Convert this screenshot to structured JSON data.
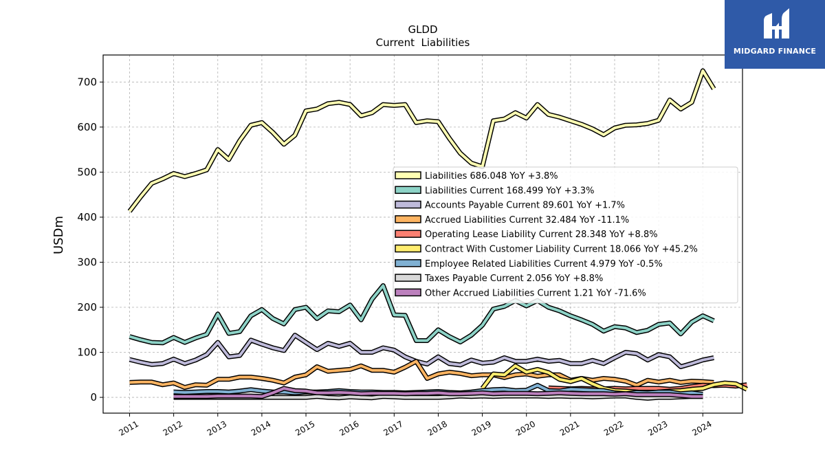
{
  "logo": {
    "text": "MIDGARD FINANCE"
  },
  "chart_data": {
    "type": "line",
    "title": "GLDD",
    "subtitle": "Current  Liabilities",
    "ylabel": "USDm",
    "xlabel": "",
    "ylim": [
      -35,
      760
    ],
    "xlim": [
      2010.4,
      2024.9
    ],
    "yticks": [
      0,
      100,
      200,
      300,
      400,
      500,
      600,
      700
    ],
    "xticks": [
      "2011",
      "2012",
      "2013",
      "2014",
      "2015",
      "2016",
      "2017",
      "2018",
      "2019",
      "2020",
      "2021",
      "2022",
      "2023",
      "2024"
    ],
    "grid": true,
    "legend_position": "center-right",
    "series": [
      {
        "name": "Liabilities",
        "legend": "Liabilities  686.048 YoY +3.8%",
        "color": "#ffffb3",
        "x0": 2011.0,
        "values": [
          413,
          445,
          475,
          485,
          497,
          490,
          497,
          505,
          550,
          528,
          570,
          604,
          610,
          588,
          562,
          582,
          636,
          640,
          652,
          655,
          650,
          625,
          632,
          650,
          648,
          650,
          610,
          614,
          612,
          575,
          542,
          520,
          512,
          614,
          618,
          632,
          620,
          650,
          628,
          622,
          614,
          606,
          596,
          583,
          598,
          604,
          605,
          608,
          615,
          660,
          640,
          655,
          725,
          685
        ]
      },
      {
        "name": "Liabilities Current",
        "legend": "Liabilities Current  168.499 YoY +3.3%",
        "color": "#8dd3c7",
        "x0": 2011.0,
        "values": [
          135,
          128,
          122,
          121,
          133,
          122,
          132,
          140,
          185,
          142,
          146,
          181,
          195,
          175,
          163,
          195,
          200,
          175,
          192,
          190,
          205,
          172,
          218,
          248,
          183,
          182,
          126,
          126,
          150,
          135,
          123,
          138,
          160,
          196,
          202,
          215,
          203,
          215,
          200,
          192,
          181,
          172,
          162,
          147,
          157,
          154,
          144,
          149,
          162,
          165,
          141,
          167,
          181,
          170
        ]
      },
      {
        "name": "Accounts Payable Current",
        "legend": "Accounts Payable Current  89.601 YoY +1.7%",
        "color": "#bebada",
        "x0": 2011.0,
        "values": [
          84,
          78,
          73,
          75,
          85,
          75,
          83,
          95,
          122,
          90,
          93,
          127,
          118,
          110,
          104,
          138,
          122,
          106,
          120,
          113,
          120,
          100,
          100,
          110,
          105,
          90,
          80,
          74,
          90,
          75,
          72,
          83,
          76,
          78,
          88,
          80,
          80,
          85,
          80,
          82,
          75,
          75,
          82,
          75,
          88,
          100,
          97,
          83,
          95,
          90,
          68,
          75,
          83,
          88
        ]
      },
      {
        "name": "Accrued Liabilities Current",
        "legend": "Accrued Liabilities Current  32.484 YoY -11.1%",
        "color": "#fdb462",
        "x0": 2011.0,
        "values": [
          33,
          34,
          34,
          28,
          32,
          22,
          28,
          27,
          40,
          40,
          45,
          45,
          42,
          38,
          32,
          45,
          50,
          68,
          58,
          60,
          62,
          70,
          60,
          60,
          56,
          67,
          80,
          42,
          52,
          56,
          53,
          48,
          50,
          50,
          44,
          50,
          52,
          47,
          50,
          50,
          38,
          42,
          38,
          42,
          40,
          36,
          27,
          38,
          34,
          38,
          33,
          36,
          35,
          33
        ]
      },
      {
        "name": "Operating Lease Liability Current",
        "legend": "Operating Lease Liability Current  28.348 YoY +8.8%",
        "color": "#fb8072",
        "x0": 2019.0,
        "values": [
          null,
          null,
          null,
          null,
          null,
          null,
          21,
          20,
          19,
          20,
          19,
          19,
          20,
          19,
          20,
          20,
          20,
          18,
          20,
          24,
          27,
          26,
          27,
          25,
          28
        ]
      },
      {
        "name": "Contract With Customer Liability Current",
        "legend": "Contract With Customer Liability Current  18.066 YoY +45.2%",
        "color": "#ffed6f",
        "x0": 2019.0,
        "values": [
          20,
          52,
          50,
          70,
          56,
          62,
          55,
          40,
          35,
          42,
          30,
          20,
          15,
          14,
          12,
          10,
          12,
          14,
          15,
          18,
          20,
          28,
          32,
          30,
          18
        ]
      },
      {
        "name": "Employee Related Liabilities Current",
        "legend": "Employee Related Liabilities Current  4.979 YoY -0.5%",
        "color": "#80b1d3",
        "x0": 2012.0,
        "values": [
          12,
          11,
          12,
          13,
          13,
          12,
          14,
          17,
          14,
          12,
          12,
          10,
          12,
          12,
          13,
          15,
          13,
          12,
          12,
          11,
          11,
          10,
          11,
          12,
          13,
          11,
          10,
          12,
          15,
          17,
          18,
          15,
          16,
          27,
          15,
          14,
          18,
          17,
          16,
          15,
          10,
          8,
          11,
          10,
          12,
          12,
          8,
          10,
          7
        ]
      },
      {
        "name": "Taxes Payable Current",
        "legend": "Taxes Payable Current  2.056 YoY +8.8%",
        "color": "#d9d9d9",
        "x0": 2012.0,
        "values": [
          0,
          0,
          0,
          0,
          0,
          0,
          0,
          0,
          0,
          0,
          0,
          0,
          0,
          2,
          0,
          -1,
          1,
          0,
          -1,
          2,
          1,
          0,
          0,
          0,
          0,
          1,
          3,
          2,
          3,
          2,
          3,
          3,
          3,
          3,
          2,
          3,
          2,
          2,
          1,
          2,
          3,
          3,
          0,
          -2,
          0,
          0,
          1,
          2,
          2
        ]
      },
      {
        "name": "Other Accrued Liabilities Current",
        "legend": "Other Accrued Liabilities Current  1.21 YoY -71.6%",
        "color": "#bc80bd",
        "x0": 2012.0,
        "values": [
          2,
          2,
          2,
          2,
          3,
          3,
          3,
          3,
          2,
          10,
          20,
          15,
          14,
          10,
          10,
          11,
          10,
          8,
          9,
          9,
          9,
          8,
          9,
          9,
          10,
          8,
          8,
          9,
          10,
          8,
          9,
          9,
          9,
          8,
          9,
          10,
          9,
          8,
          8,
          8,
          7,
          8,
          6,
          6,
          6,
          6,
          4,
          2,
          2
        ]
      }
    ]
  }
}
